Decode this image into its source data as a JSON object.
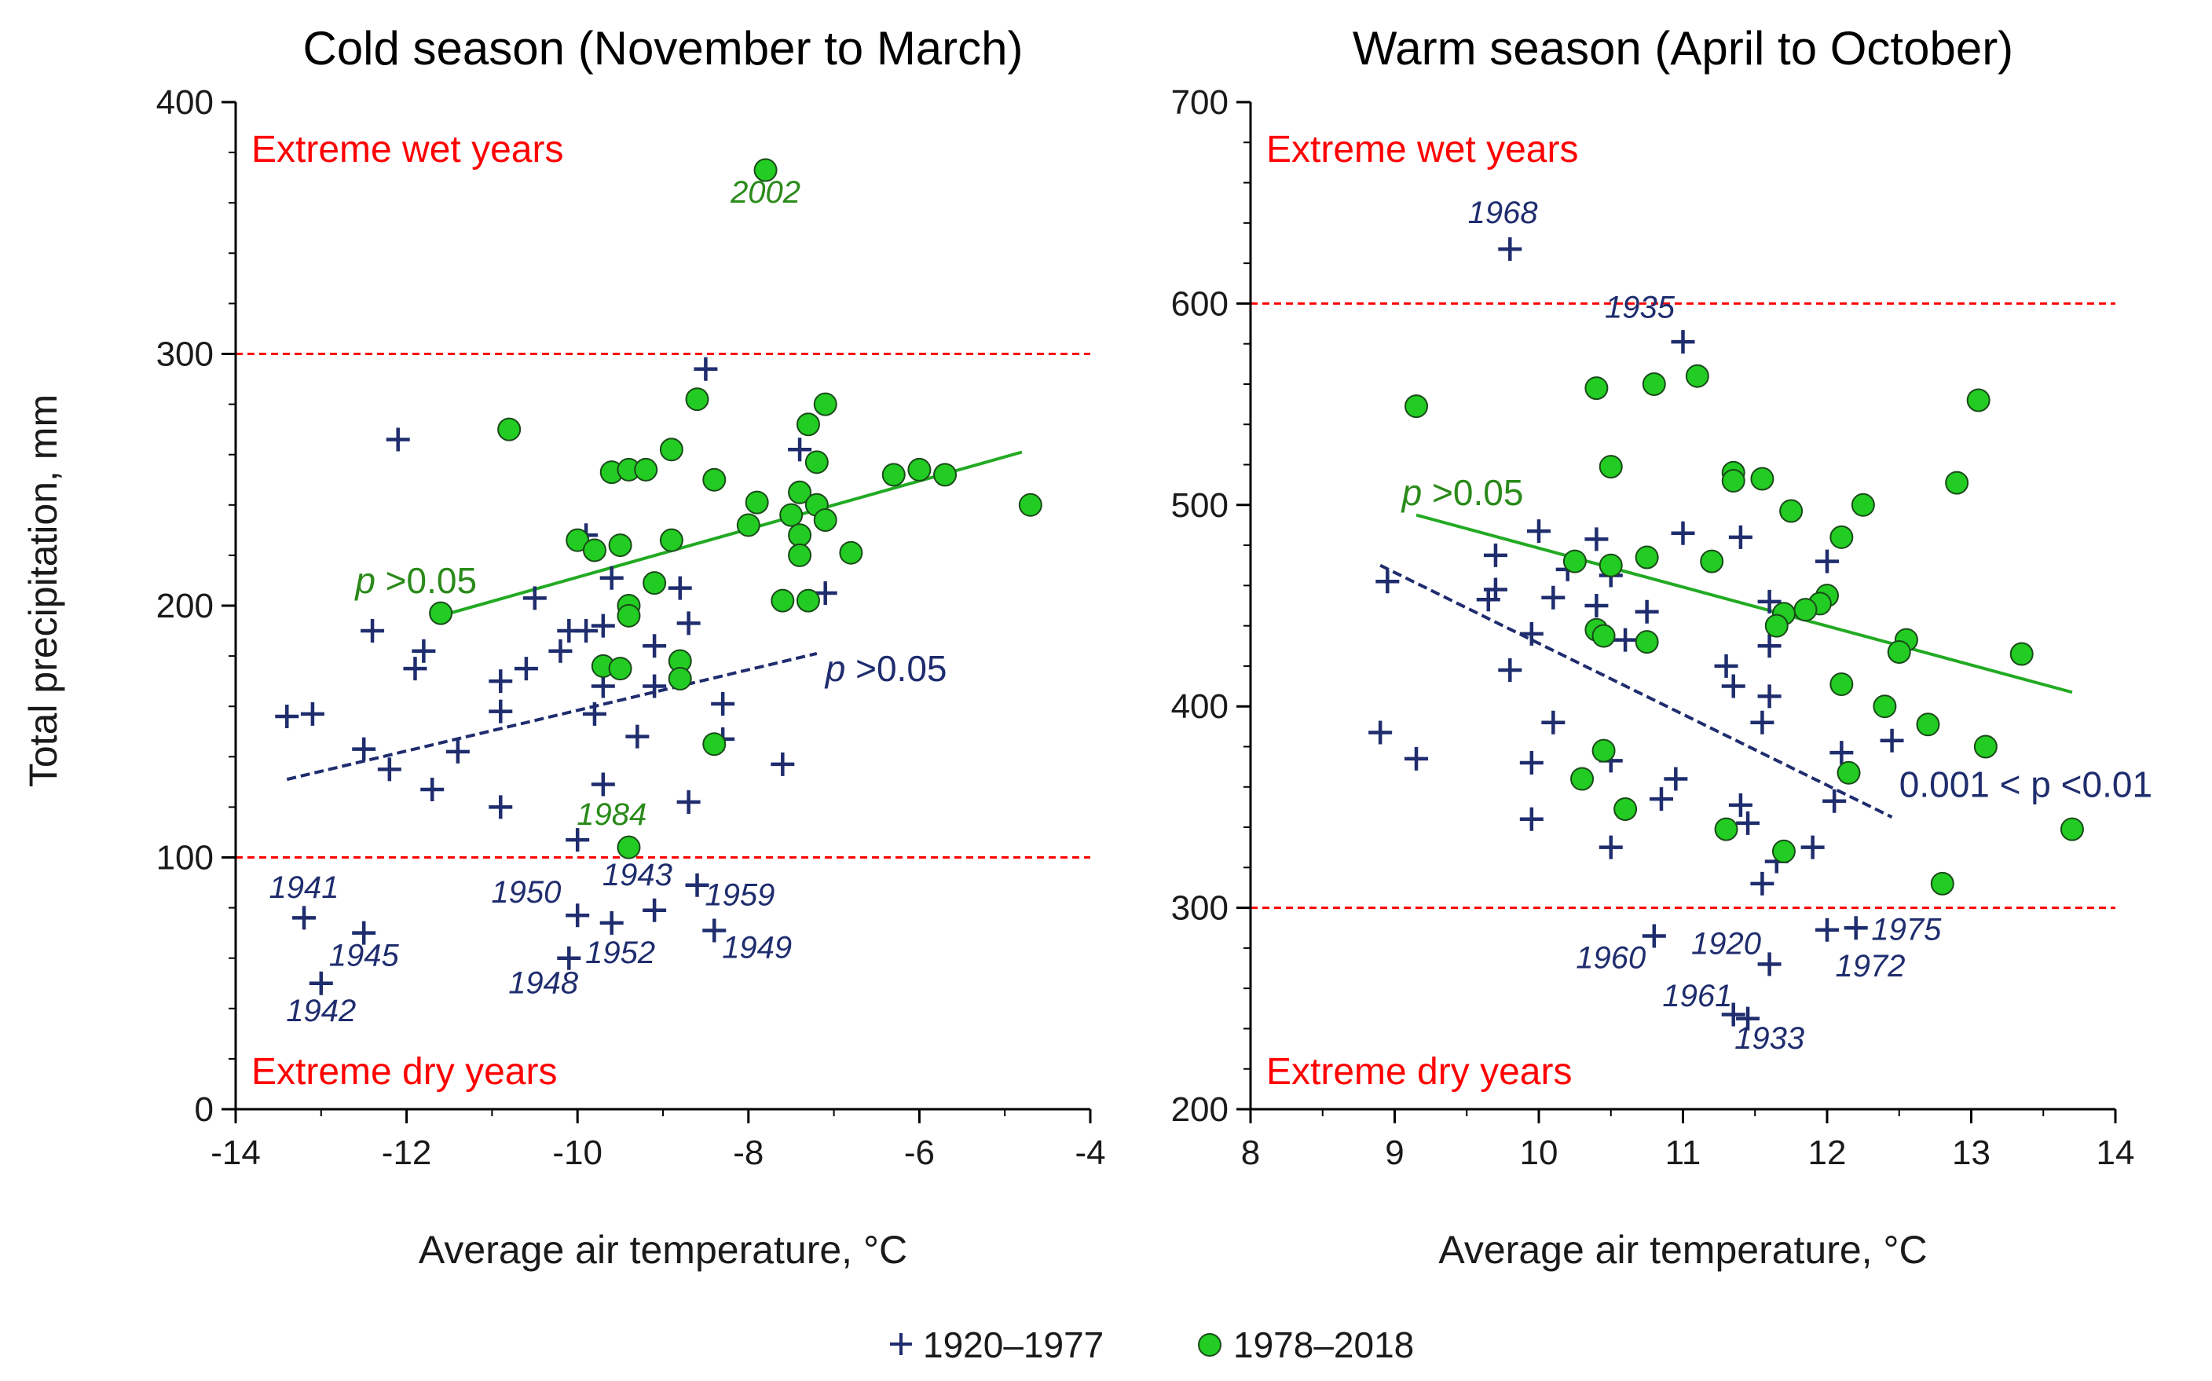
{
  "chart_data": [
    {
      "type": "scatter",
      "id": "cold",
      "title": "Cold season (November to March)",
      "xlabel": "Average air temperature, °C",
      "ylabel": "Total precipitation, mm",
      "xlim": [
        -14,
        -4
      ],
      "ylim": [
        0,
        400
      ],
      "xticks": [
        -14,
        -12,
        -10,
        -8,
        -6,
        -4
      ],
      "yticks": [
        0,
        100,
        200,
        300,
        400
      ],
      "thresholds": [
        100,
        300
      ],
      "wet_label": "Extreme wet years",
      "dry_label": "Extreme dry years",
      "series": [
        {
          "name": "1920–1977",
          "marker": "plus",
          "color": "#1f2d6e",
          "points": [
            [
              -8.5,
              294
            ],
            [
              -12.1,
              266
            ],
            [
              -7.4,
              262
            ],
            [
              -9.9,
              228
            ],
            [
              -9.6,
              211
            ],
            [
              -8.8,
              207
            ],
            [
              -10.5,
              203
            ],
            [
              -7.1,
              205
            ],
            [
              -12.4,
              190
            ],
            [
              -10.1,
              190
            ],
            [
              -9.9,
              190
            ],
            [
              -9.7,
              192
            ],
            [
              -8.7,
              193
            ],
            [
              -11.8,
              182
            ],
            [
              -10.2,
              182
            ],
            [
              -11.9,
              175
            ],
            [
              -10.9,
              170
            ],
            [
              -10.6,
              175
            ],
            [
              -9.1,
              184
            ],
            [
              -9.7,
              168
            ],
            [
              -9.1,
              168
            ],
            [
              -13.1,
              157
            ],
            [
              -13.4,
              156
            ],
            [
              -10.9,
              158
            ],
            [
              -9.8,
              157
            ],
            [
              -9.3,
              148
            ],
            [
              -8.3,
              161
            ],
            [
              -8.3,
              147
            ],
            [
              -12.5,
              143
            ],
            [
              -11.4,
              142
            ],
            [
              -12.2,
              135
            ],
            [
              -11.7,
              127
            ],
            [
              -9.7,
              129
            ],
            [
              -7.6,
              137
            ],
            [
              -8.7,
              122
            ],
            [
              -10.9,
              120
            ],
            [
              -10.0,
              107
            ],
            [
              -13.2,
              76
            ],
            [
              -12.5,
              70
            ],
            [
              -13.0,
              50
            ],
            [
              -10.0,
              77
            ],
            [
              -9.6,
              74
            ],
            [
              -9.1,
              79
            ],
            [
              -8.6,
              89
            ],
            [
              -8.4,
              71
            ],
            [
              -10.1,
              60
            ]
          ]
        },
        {
          "name": "1978–2018",
          "marker": "circle",
          "color": "#22cc22",
          "points": [
            [
              -7.8,
              373
            ],
            [
              -10.8,
              270
            ],
            [
              -8.6,
              282
            ],
            [
              -7.1,
              280
            ],
            [
              -7.3,
              272
            ],
            [
              -8.9,
              262
            ],
            [
              -7.2,
              257
            ],
            [
              -9.6,
              253
            ],
            [
              -9.4,
              254
            ],
            [
              -9.2,
              254
            ],
            [
              -8.4,
              250
            ],
            [
              -6.3,
              252
            ],
            [
              -6.0,
              254
            ],
            [
              -5.7,
              252
            ],
            [
              -7.4,
              245
            ],
            [
              -7.9,
              241
            ],
            [
              -7.2,
              240
            ],
            [
              -7.5,
              236
            ],
            [
              -8.0,
              232
            ],
            [
              -7.1,
              234
            ],
            [
              -10.0,
              226
            ],
            [
              -8.9,
              226
            ],
            [
              -9.5,
              224
            ],
            [
              -9.8,
              222
            ],
            [
              -7.4,
              228
            ],
            [
              -7.4,
              220
            ],
            [
              -6.8,
              221
            ],
            [
              -4.7,
              240
            ],
            [
              -9.1,
              209
            ],
            [
              -7.6,
              202
            ],
            [
              -7.3,
              202
            ],
            [
              -9.4,
              200
            ],
            [
              -9.4,
              196
            ],
            [
              -11.6,
              197
            ],
            [
              -8.8,
              178
            ],
            [
              -9.7,
              176
            ],
            [
              -9.5,
              175
            ],
            [
              -8.8,
              171
            ],
            [
              -8.4,
              145
            ],
            [
              -9.4,
              104
            ]
          ]
        }
      ],
      "trendlines": [
        {
          "series": "1920–1977",
          "style": "dashed",
          "color": "#1f2d6e",
          "x": [
            -13.4,
            -7.2
          ],
          "y": [
            131,
            181
          ]
        },
        {
          "series": "1978–2018",
          "style": "solid",
          "color": "#22aa22",
          "x": [
            -11.6,
            -4.8
          ],
          "y": [
            196,
            261
          ]
        }
      ],
      "year_labels": [
        {
          "text": "2002",
          "x": -7.8,
          "y": 360,
          "color": "green"
        },
        {
          "text": "1984",
          "x": -9.6,
          "y": 113,
          "color": "green"
        },
        {
          "text": "1941",
          "x": -13.2,
          "y": 84,
          "color": "blue"
        },
        {
          "text": "1945",
          "x": -12.5,
          "y": 57,
          "color": "blue"
        },
        {
          "text": "1942",
          "x": -13.0,
          "y": 35,
          "color": "blue"
        },
        {
          "text": "1950",
          "x": -10.6,
          "y": 82,
          "color": "blue"
        },
        {
          "text": "1943",
          "x": -9.3,
          "y": 89,
          "color": "blue"
        },
        {
          "text": "1959",
          "x": -8.1,
          "y": 81,
          "color": "blue"
        },
        {
          "text": "1952",
          "x": -9.5,
          "y": 58,
          "color": "blue"
        },
        {
          "text": "1949",
          "x": -7.9,
          "y": 60,
          "color": "blue"
        },
        {
          "text": "1948",
          "x": -10.4,
          "y": 46,
          "color": "blue"
        }
      ],
      "pvalue_labels": [
        {
          "prefix": "p",
          "text": " >0.05",
          "x": -12.6,
          "y": 205,
          "color": "green"
        },
        {
          "prefix": "p",
          "text": " >0.05",
          "x": -7.1,
          "y": 170,
          "color": "blue"
        }
      ]
    },
    {
      "type": "scatter",
      "id": "warm",
      "title": "Warm season (April to October)",
      "xlabel": "Average air temperature, °C",
      "ylabel": "",
      "xlim": [
        8,
        14
      ],
      "ylim": [
        200,
        700
      ],
      "xticks": [
        8,
        9,
        10,
        11,
        12,
        13,
        14
      ],
      "yticks": [
        200,
        300,
        400,
        500,
        600,
        700
      ],
      "thresholds": [
        300,
        600
      ],
      "wet_label": "Extreme wet years",
      "dry_label": "Extreme dry years",
      "series": [
        {
          "name": "1920–1977",
          "marker": "plus",
          "color": "#1f2d6e",
          "points": [
            [
              9.8,
              627
            ],
            [
              11.0,
              581
            ],
            [
              10.0,
              487
            ],
            [
              11.0,
              486
            ],
            [
              11.4,
              484
            ],
            [
              10.4,
              483
            ],
            [
              9.7,
              475
            ],
            [
              10.2,
              468
            ],
            [
              10.5,
              465
            ],
            [
              12.0,
              472
            ],
            [
              8.95,
              462
            ],
            [
              9.7,
              458
            ],
            [
              9.65,
              453
            ],
            [
              10.1,
              454
            ],
            [
              10.4,
              450
            ],
            [
              11.6,
              452
            ],
            [
              10.75,
              447
            ],
            [
              9.95,
              436
            ],
            [
              10.6,
              433
            ],
            [
              11.6,
              430
            ],
            [
              11.3,
              420
            ],
            [
              9.8,
              418
            ],
            [
              11.35,
              410
            ],
            [
              11.6,
              405
            ],
            [
              11.55,
              392
            ],
            [
              10.1,
              392
            ],
            [
              8.9,
              387
            ],
            [
              12.45,
              383
            ],
            [
              12.1,
              377
            ],
            [
              9.15,
              374
            ],
            [
              10.5,
              373
            ],
            [
              9.95,
              372
            ],
            [
              10.95,
              364
            ],
            [
              10.85,
              354
            ],
            [
              12.05,
              353
            ],
            [
              11.4,
              351
            ],
            [
              9.95,
              344
            ],
            [
              11.45,
              342
            ],
            [
              10.5,
              330
            ],
            [
              11.9,
              330
            ],
            [
              11.65,
              323
            ],
            [
              11.55,
              312
            ],
            [
              10.8,
              286
            ],
            [
              11.6,
              272
            ],
            [
              12.0,
              289
            ],
            [
              12.2,
              290
            ],
            [
              11.35,
              247
            ],
            [
              11.45,
              245
            ]
          ]
        },
        {
          "name": "1978–2018",
          "marker": "circle",
          "color": "#22cc22",
          "points": [
            [
              9.15,
              549
            ],
            [
              10.4,
              558
            ],
            [
              10.8,
              560
            ],
            [
              11.1,
              564
            ],
            [
              13.05,
              552
            ],
            [
              10.5,
              519
            ],
            [
              11.35,
              516
            ],
            [
              11.55,
              513
            ],
            [
              11.35,
              512
            ],
            [
              12.9,
              511
            ],
            [
              11.75,
              497
            ],
            [
              12.25,
              500
            ],
            [
              12.1,
              484
            ],
            [
              10.75,
              474
            ],
            [
              10.25,
              472
            ],
            [
              10.5,
              470
            ],
            [
              11.2,
              472
            ],
            [
              12.0,
              455
            ],
            [
              11.95,
              451
            ],
            [
              11.85,
              448
            ],
            [
              11.7,
              446
            ],
            [
              11.65,
              440
            ],
            [
              10.4,
              438
            ],
            [
              10.45,
              435
            ],
            [
              10.75,
              432
            ],
            [
              12.55,
              433
            ],
            [
              12.5,
              427
            ],
            [
              13.35,
              426
            ],
            [
              12.1,
              411
            ],
            [
              12.4,
              400
            ],
            [
              12.7,
              391
            ],
            [
              13.1,
              380
            ],
            [
              10.45,
              378
            ],
            [
              10.3,
              364
            ],
            [
              12.15,
              367
            ],
            [
              10.6,
              349
            ],
            [
              11.3,
              339
            ],
            [
              11.7,
              328
            ],
            [
              13.7,
              339
            ],
            [
              12.8,
              312
            ]
          ]
        }
      ],
      "trendlines": [
        {
          "series": "1920–1977",
          "style": "dashed",
          "color": "#1f2d6e",
          "x": [
            8.9,
            12.45
          ],
          "y": [
            470,
            345
          ]
        },
        {
          "series": "1978–2018",
          "style": "solid",
          "color": "#22aa22",
          "x": [
            9.15,
            13.7
          ],
          "y": [
            495,
            407
          ]
        }
      ],
      "year_labels": [
        {
          "text": "1968",
          "x": 9.75,
          "y": 640,
          "color": "blue"
        },
        {
          "text": "1935",
          "x": 10.7,
          "y": 593,
          "color": "blue"
        },
        {
          "text": "1960",
          "x": 10.5,
          "y": 270,
          "color": "blue"
        },
        {
          "text": "1920",
          "x": 11.3,
          "y": 277,
          "color": "blue"
        },
        {
          "text": "1975",
          "x": 12.55,
          "y": 284,
          "color": "blue"
        },
        {
          "text": "1972",
          "x": 12.3,
          "y": 266,
          "color": "blue"
        },
        {
          "text": "1961",
          "x": 11.1,
          "y": 251,
          "color": "blue"
        },
        {
          "text": "1933",
          "x": 11.6,
          "y": 230,
          "color": "blue"
        }
      ],
      "pvalue_labels": [
        {
          "prefix": "p",
          "text": " >0.05",
          "x": 9.05,
          "y": 500,
          "color": "green"
        },
        {
          "prefix": "0.001 < ",
          "text": "p <0.01",
          "x": 12.5,
          "y": 355,
          "color": "blue"
        }
      ]
    }
  ],
  "legend": {
    "items": [
      {
        "marker": "plus",
        "label": "1920–1977",
        "color": "#1f2d6e"
      },
      {
        "marker": "circle",
        "label": "1978–2018",
        "color": "#22cc22"
      }
    ]
  },
  "colors": {
    "blue": "#1f2d6e",
    "green_fill": "#22cc22",
    "green_text": "#2a8a1a",
    "red": "#ff0000"
  }
}
